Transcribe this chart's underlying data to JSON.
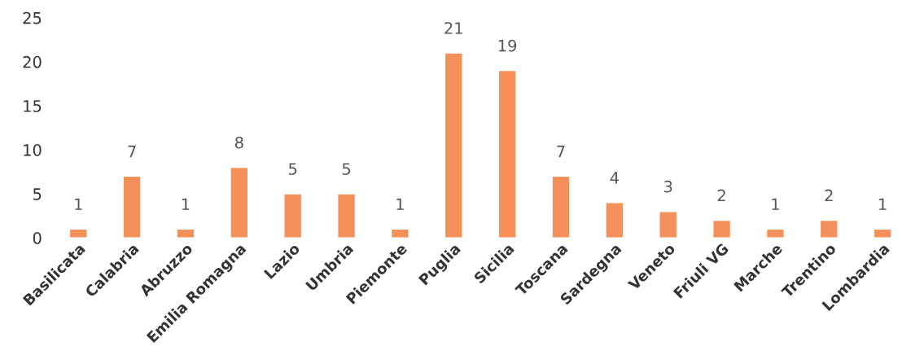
{
  "chart_data": {
    "type": "bar",
    "categories": [
      "Basilicata",
      "Calabria",
      "Abruzzo",
      "Emilia Romagna",
      "Lazio",
      "Umbria",
      "Piemonte",
      "Puglia",
      "Sicilia",
      "Toscana",
      "Sardegna",
      "Veneto",
      "Friuli VG",
      "Marche",
      "Trentino",
      "Lombardia"
    ],
    "values": [
      1,
      7,
      1,
      8,
      5,
      5,
      1,
      21,
      19,
      7,
      4,
      3,
      2,
      1,
      2,
      1
    ],
    "color": "#f4915a",
    "ylim": [
      0,
      25
    ],
    "yticks": [
      0,
      5,
      10,
      15,
      20,
      25
    ],
    "data_labels": true,
    "grid": false,
    "legend": false
  }
}
